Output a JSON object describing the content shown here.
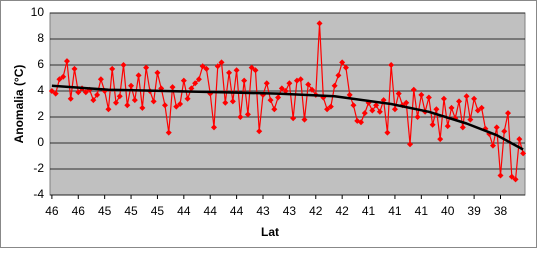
{
  "chart_data": {
    "type": "line",
    "x_label": "Lat",
    "y_label": "Anomalia (°C)",
    "categories": [
      "46",
      null,
      null,
      null,
      null,
      null,
      null,
      "46",
      null,
      null,
      null,
      null,
      null,
      null,
      "45",
      null,
      null,
      null,
      null,
      null,
      null,
      "45",
      null,
      null,
      null,
      null,
      null,
      null,
      "45",
      null,
      null,
      null,
      null,
      null,
      null,
      "44",
      null,
      null,
      null,
      null,
      null,
      null,
      "44",
      null,
      null,
      null,
      null,
      null,
      null,
      "44",
      null,
      null,
      null,
      null,
      null,
      null,
      "43",
      null,
      null,
      null,
      null,
      null,
      null,
      "43",
      null,
      null,
      null,
      null,
      null,
      null,
      "42",
      null,
      null,
      null,
      null,
      null,
      null,
      "42",
      null,
      null,
      null,
      null,
      null,
      null,
      "41",
      null,
      null,
      null,
      null,
      null,
      null,
      "41",
      null,
      null,
      null,
      null,
      null,
      null,
      "41",
      null,
      null,
      null,
      null,
      null,
      null,
      "40",
      null,
      null,
      null,
      null,
      null,
      null,
      "39",
      null,
      null,
      null,
      null,
      null,
      null,
      "38",
      null,
      null,
      null,
      null,
      null,
      null
    ],
    "series": [
      {
        "color": "#ff0000",
        "values": [
          4.0,
          3.8,
          4.9,
          5.1,
          6.3,
          3.4,
          5.7,
          3.9,
          4.2,
          3.9,
          4.1,
          3.3,
          3.7,
          4.9,
          4.0,
          2.6,
          5.7,
          3.1,
          3.6,
          6.0,
          2.9,
          4.4,
          3.3,
          5.2,
          2.7,
          5.8,
          4.0,
          3.2,
          5.4,
          4.2,
          2.9,
          0.8,
          4.3,
          2.8,
          3.0,
          4.8,
          3.4,
          4.2,
          4.6,
          4.9,
          5.9,
          5.7,
          3.8,
          1.2,
          5.9,
          6.2,
          3.1,
          5.4,
          3.2,
          5.6,
          2.0,
          4.8,
          2.2,
          5.8,
          5.6,
          0.9,
          3.7,
          4.6,
          3.3,
          2.6,
          3.5,
          4.2,
          4.0,
          4.6,
          1.9,
          4.8,
          4.9,
          1.8,
          4.5,
          4.1,
          3.7,
          9.2,
          3.5,
          2.6,
          2.8,
          4.4,
          5.2,
          6.2,
          5.8,
          3.7,
          2.9,
          1.7,
          1.6,
          2.3,
          3.1,
          2.5,
          2.9,
          2.4,
          3.3,
          0.8,
          6.0,
          2.6,
          3.8,
          2.9,
          3.1,
          -0.1,
          4.1,
          2.0,
          3.7,
          2.4,
          3.5,
          1.4,
          2.6,
          0.3,
          3.4,
          1.3,
          2.7,
          1.9,
          3.2,
          1.2,
          3.6,
          1.8,
          3.4,
          2.5,
          2.7,
          1.1,
          0.7,
          -0.2,
          1.2,
          -2.5,
          0.9,
          2.3,
          -2.6,
          -2.8,
          0.3,
          -0.8
        ]
      }
    ],
    "trendline": {
      "color": "#000000",
      "x": [
        0,
        15,
        30,
        45,
        60,
        75,
        90,
        100,
        110,
        118,
        125
      ],
      "values": [
        4.4,
        4.1,
        4.0,
        3.9,
        3.8,
        3.6,
        3.0,
        2.4,
        1.5,
        0.6,
        -0.5
      ]
    },
    "ylim": [
      -4,
      10
    ],
    "yticks": [
      -4,
      -2,
      0,
      2,
      4,
      6,
      8,
      10
    ],
    "grid": true,
    "plot_background": "#c0c0c0"
  }
}
